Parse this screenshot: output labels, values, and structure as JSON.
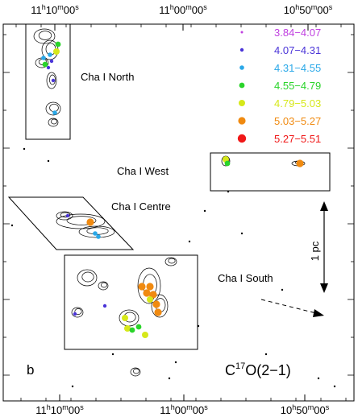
{
  "chart_data": {
    "type": "scatter",
    "panel_label": "b",
    "line_label": {
      "main": "C",
      "sup": "17",
      "rest": "O(2−1)"
    },
    "axis": {
      "top_ticks": [
        {
          "h": "11",
          "m": "10",
          "s": "00"
        },
        {
          "h": "11",
          "m": "00",
          "s": "00"
        },
        {
          "h": "10",
          "m": "50",
          "s": "00"
        }
      ],
      "bottom_ticks": [
        {
          "h": "11",
          "m": "10",
          "s": "00"
        },
        {
          "h": "11",
          "m": "00",
          "s": "00"
        },
        {
          "h": "10",
          "m": "50",
          "s": "00"
        }
      ]
    },
    "regions": [
      {
        "name": "Cha I North"
      },
      {
        "name": "Cha I West"
      },
      {
        "name": "Cha I Centre"
      },
      {
        "name": "Cha I South"
      }
    ],
    "scale_bar": {
      "label": "1 pc"
    },
    "legend": [
      {
        "label": "3.84−4.07",
        "color": "#c040e0"
      },
      {
        "label": "4.07−4.31",
        "color": "#4a34d8"
      },
      {
        "label": "4.31−4.55",
        "color": "#2aa8e8"
      },
      {
        "label": "4.55−4.79",
        "color": "#2ad42a"
      },
      {
        "label": "4.79−5.03",
        "color": "#d6e81a"
      },
      {
        "label": "5.03−5.27",
        "color": "#f08a10"
      },
      {
        "label": "5.27−5.51",
        "color": "#f01818"
      }
    ]
  }
}
